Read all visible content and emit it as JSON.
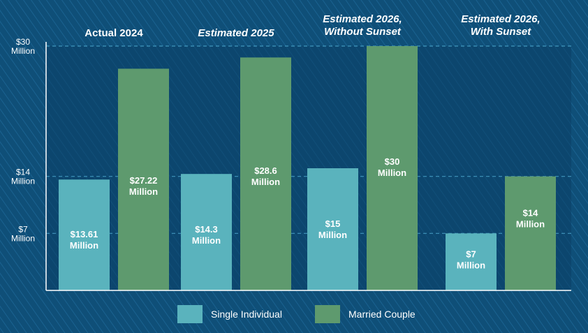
{
  "chart_data": {
    "type": "bar",
    "categories": [
      [
        "Actual 2024"
      ],
      [
        "Estimated 2025"
      ],
      [
        "Estimated 2026,",
        "Without Sunset"
      ],
      [
        "Estimated 2026,",
        "With Sunset"
      ]
    ],
    "category_italic": [
      false,
      true,
      true,
      true
    ],
    "series": [
      {
        "name": "Single Individual",
        "color": "#5ab3bd",
        "values": [
          13.61,
          14.3,
          15,
          7
        ],
        "labels": [
          [
            "$13.61",
            "Million"
          ],
          [
            "$14.3",
            "Million"
          ],
          [
            "$15",
            "Million"
          ],
          [
            "$7",
            "Million"
          ]
        ]
      },
      {
        "name": "Married Couple",
        "color": "#5e9a6e",
        "values": [
          27.22,
          28.6,
          30,
          14
        ],
        "labels": [
          [
            "$27.22",
            "Million"
          ],
          [
            "$28.6",
            "Million"
          ],
          [
            "$30",
            "Million"
          ],
          [
            "$14",
            "Million"
          ]
        ]
      }
    ],
    "yticks": [
      {
        "value": 7,
        "label": [
          "$7",
          "Million"
        ]
      },
      {
        "value": 14,
        "label": [
          "$14",
          "Million"
        ]
      },
      {
        "value": 30,
        "label": [
          "$30",
          "Million"
        ]
      }
    ],
    "ylim": [
      0,
      30
    ],
    "legend_position": "bottom-center",
    "grid": "dashed lines at tick values",
    "colors": {
      "background": "#0f4f78",
      "plot_background": "#0b4066",
      "gridline": "#4aa3c9",
      "axis": "#ffffff"
    }
  }
}
